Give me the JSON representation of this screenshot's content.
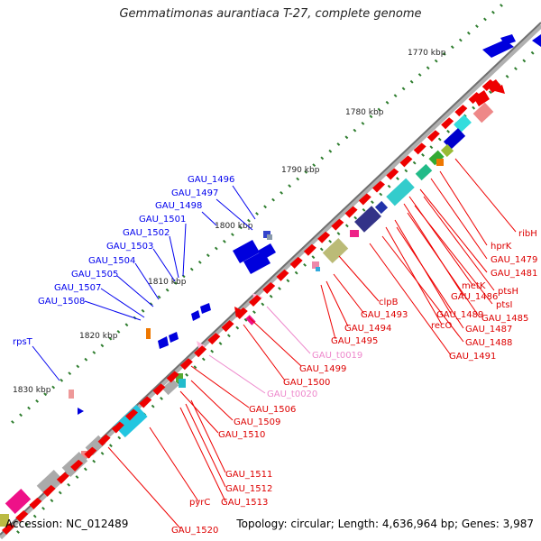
{
  "title": "Gemmatimonas aurantiaca T-27, complete genome",
  "footer": {
    "accession": "Accession: NC_012489",
    "summary": "Topology: circular; Length: 4,636,964 bp; Genes: 3,987"
  },
  "colors": {
    "background": "#ffffff",
    "backbone": "#7a7a7a",
    "tick": "#2e7d2e",
    "blue_label": "#0000ee",
    "red_label": "#dd0000",
    "pink_label": "#ee88cc"
  },
  "ruler": [
    {
      "label": "1770 kbp"
    },
    {
      "label": "1780 kbp"
    },
    {
      "label": "1790 kbp"
    },
    {
      "label": "1800 kbp"
    },
    {
      "label": "1810 kbp"
    },
    {
      "label": "1820 kbp"
    },
    {
      "label": "1830 kbp"
    }
  ],
  "blue_labels": [
    "GAU_1496",
    "GAU_1497",
    "GAU_1498",
    "GAU_1501",
    "GAU_1502",
    "GAU_1503",
    "GAU_1504",
    "GAU_1505",
    "GAU_1507",
    "GAU_1508",
    "rpsT"
  ],
  "red_labels_right": [
    "ribH",
    "hprK",
    "GAU_1479",
    "GAU_1481",
    "metK",
    "ptsH",
    "GAU_1486",
    "ptsI",
    "GAU_1485",
    "GAU_1489",
    "recO",
    "GAU_1487",
    "GAU_1488",
    "GAU_1491",
    "clpB",
    "GAU_1493",
    "GAU_1494",
    "GAU_1495"
  ],
  "pink_labels": [
    "GAU_t0019",
    "GAU_t0020"
  ],
  "red_labels_bottom": [
    "GAU_1499",
    "GAU_1500",
    "GAU_1506",
    "GAU_1509",
    "GAU_1510",
    "GAU_1511",
    "GAU_1512",
    "GAU_1513",
    "pyrC",
    "GAU_1520"
  ]
}
